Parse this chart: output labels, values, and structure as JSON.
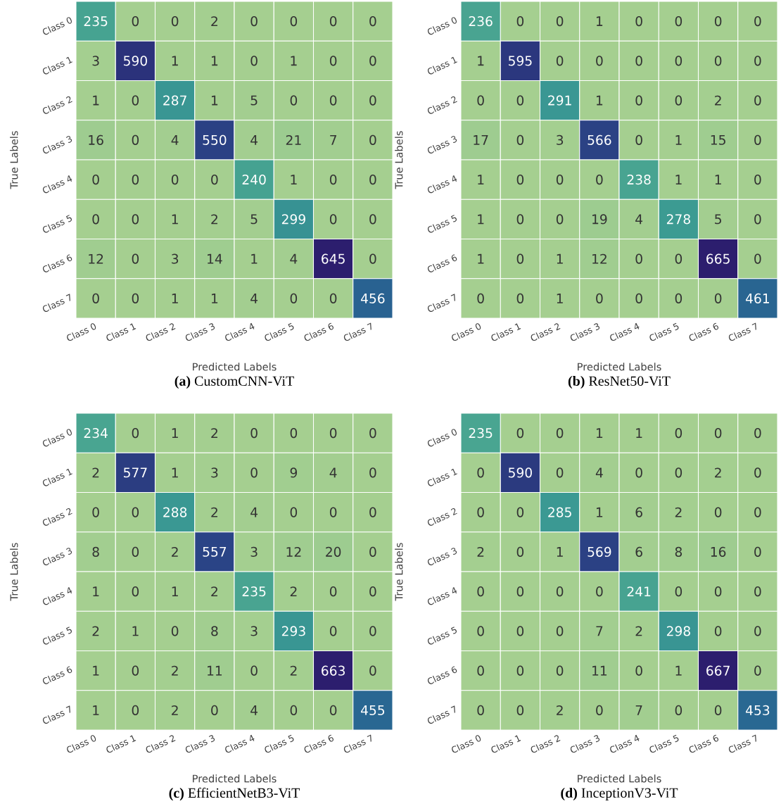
{
  "chart_data": [
    {
      "type": "heatmap",
      "data_labels": true,
      "title": "**(a)** CustomCNN-ViT",
      "xlabel": "Predicted Labels",
      "ylabel": "True Labels",
      "categories": [
        "Class 0",
        "Class 1",
        "Class 2",
        "Class 3",
        "Class 4",
        "Class 5",
        "Class 6",
        "Class 7"
      ],
      "y_categories": [
        "Class 0",
        "Class 1",
        "Class 2",
        "Class 3",
        "Class 4",
        "Class 5",
        "Class 6",
        "Class 7"
      ],
      "cells": [
        [
          235,
          0,
          0,
          2,
          0,
          0,
          0,
          0
        ],
        [
          3,
          590,
          1,
          1,
          0,
          1,
          0,
          0
        ],
        [
          1,
          0,
          287,
          1,
          5,
          0,
          0,
          0
        ],
        [
          16,
          0,
          4,
          550,
          4,
          21,
          7,
          0
        ],
        [
          0,
          0,
          0,
          0,
          240,
          1,
          0,
          0
        ],
        [
          0,
          0,
          1,
          2,
          5,
          299,
          0,
          0
        ],
        [
          12,
          0,
          3,
          14,
          1,
          4,
          645,
          0
        ],
        [
          0,
          0,
          1,
          1,
          4,
          0,
          0,
          456
        ]
      ]
    },
    {
      "type": "heatmap",
      "data_labels": true,
      "title": "**(b)** ResNet50-ViT",
      "xlabel": "Predicted Labels",
      "ylabel": "True Labels",
      "categories": [
        "Class 0",
        "Class 1",
        "Class 2",
        "Class 3",
        "Class 4",
        "Class 5",
        "Class 6",
        "Class 7"
      ],
      "y_categories": [
        "Class 0",
        "Class 1",
        "Class 2",
        "Class 3",
        "Class 4",
        "Class 5",
        "Class 6",
        "Class 7"
      ],
      "cells": [
        [
          236,
          0,
          0,
          1,
          0,
          0,
          0,
          0
        ],
        [
          1,
          595,
          0,
          0,
          0,
          0,
          0,
          0
        ],
        [
          0,
          0,
          291,
          1,
          0,
          0,
          2,
          0
        ],
        [
          17,
          0,
          3,
          566,
          0,
          1,
          15,
          0
        ],
        [
          1,
          0,
          0,
          0,
          238,
          1,
          1,
          0
        ],
        [
          1,
          0,
          0,
          19,
          4,
          278,
          5,
          0
        ],
        [
          1,
          0,
          1,
          12,
          0,
          0,
          665,
          0
        ],
        [
          0,
          0,
          1,
          0,
          0,
          0,
          0,
          461
        ]
      ]
    },
    {
      "type": "heatmap",
      "data_labels": true,
      "title": "**(c)** EfficientNetB3-ViT",
      "xlabel": "Predicted Labels",
      "ylabel": "True Labels",
      "categories": [
        "Class 0",
        "Class 1",
        "Class 2",
        "Class 3",
        "Class 4",
        "Class 5",
        "Class 6",
        "Class 7"
      ],
      "y_categories": [
        "Class 0",
        "Class 1",
        "Class 2",
        "Class 3",
        "Class 4",
        "Class 5",
        "Class 6",
        "Class 7"
      ],
      "cells": [
        [
          234,
          0,
          1,
          2,
          0,
          0,
          0,
          0
        ],
        [
          2,
          577,
          1,
          3,
          0,
          9,
          4,
          0
        ],
        [
          0,
          0,
          288,
          2,
          4,
          0,
          0,
          0
        ],
        [
          8,
          0,
          2,
          557,
          3,
          12,
          20,
          0
        ],
        [
          1,
          0,
          1,
          2,
          235,
          2,
          0,
          0
        ],
        [
          2,
          1,
          0,
          8,
          3,
          293,
          0,
          0
        ],
        [
          1,
          0,
          2,
          11,
          0,
          2,
          663,
          0
        ],
        [
          1,
          0,
          2,
          0,
          4,
          0,
          0,
          455
        ]
      ]
    },
    {
      "type": "heatmap",
      "data_labels": true,
      "title": "**(d)** InceptionV3-ViT",
      "xlabel": "Predicted Labels",
      "ylabel": "True Labels",
      "categories": [
        "Class 0",
        "Class 1",
        "Class 2",
        "Class 3",
        "Class 4",
        "Class 5",
        "Class 6",
        "Class 7"
      ],
      "y_categories": [
        "Class 0",
        "Class 1",
        "Class 2",
        "Class 3",
        "Class 4",
        "Class 5",
        "Class 6",
        "Class 7"
      ],
      "cells": [
        [
          235,
          0,
          0,
          1,
          1,
          0,
          0,
          0
        ],
        [
          0,
          590,
          0,
          4,
          0,
          0,
          2,
          0
        ],
        [
          0,
          0,
          285,
          1,
          6,
          2,
          0,
          0
        ],
        [
          2,
          0,
          1,
          569,
          6,
          8,
          16,
          0
        ],
        [
          0,
          0,
          0,
          0,
          241,
          0,
          0,
          0
        ],
        [
          0,
          0,
          0,
          7,
          2,
          298,
          0,
          0
        ],
        [
          0,
          0,
          0,
          11,
          0,
          1,
          667,
          0
        ],
        [
          0,
          0,
          2,
          0,
          7,
          0,
          0,
          453
        ]
      ]
    }
  ]
}
